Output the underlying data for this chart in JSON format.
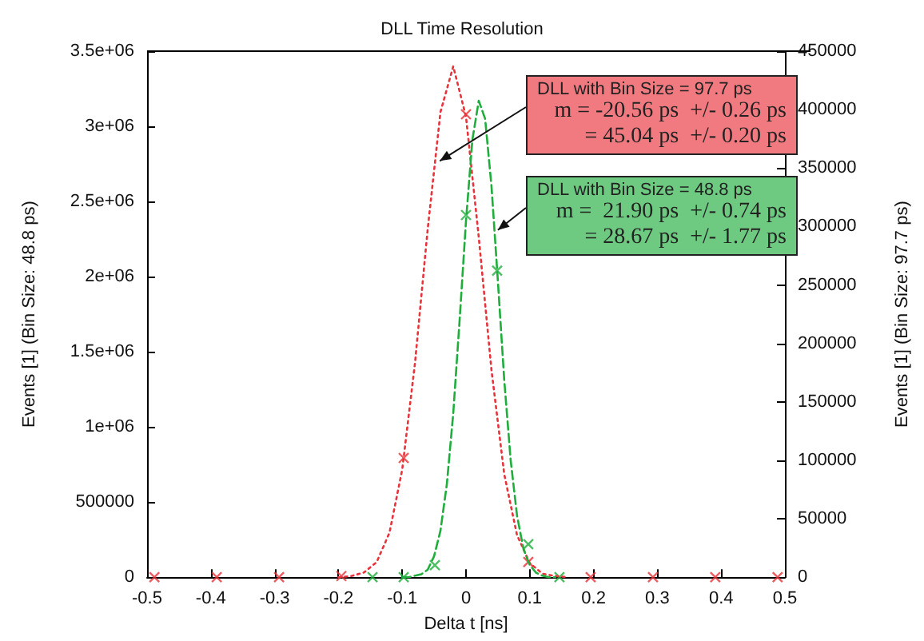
{
  "chart_data": {
    "type": "line",
    "title": "DLL Time Resolution",
    "xlabel": "Delta t [ns]",
    "ylabel": "Events [1] (Bin Size: 48.8 ps)",
    "y2label": "Events [1] (Bin Size: 97.7 ps)",
    "xlim": [
      -0.5,
      0.5
    ],
    "xticks": [
      -0.5,
      -0.4,
      -0.3,
      -0.2,
      -0.1,
      0,
      0.1,
      0.2,
      0.3,
      0.4,
      0.5
    ],
    "ylim": [
      0,
      3500000
    ],
    "yticks": [
      0,
      500000,
      {
        "value": 1000000,
        "label": "1e+06"
      },
      {
        "value": 1500000,
        "label": "1.5e+06"
      },
      {
        "value": 2000000,
        "label": "2e+06"
      },
      {
        "value": 2500000,
        "label": "2.5e+06"
      },
      {
        "value": 3000000,
        "label": "3e+06"
      },
      {
        "value": 3500000,
        "label": "3.5e+06"
      }
    ],
    "y2lim": [
      0,
      450000
    ],
    "y2ticks": [
      0,
      50000,
      100000,
      150000,
      200000,
      250000,
      300000,
      350000,
      400000,
      450000
    ],
    "grid": false,
    "series": [
      {
        "axis": "y2",
        "color": "#e8333a",
        "marker": "none",
        "line_style": "dotted",
        "x": [
          -0.2,
          -0.18,
          -0.16,
          -0.14,
          -0.12,
          -0.1,
          -0.08,
          -0.06,
          -0.04,
          -0.02,
          0,
          0.02,
          0.04,
          0.06,
          0.08,
          0.1,
          0.12,
          0.14,
          0.16
        ],
        "values": [
          0,
          1000,
          4000,
          13000,
          38000,
          92000,
          183000,
          298000,
          398000,
          437000,
          394000,
          291000,
          177000,
          88000,
          36000,
          12000,
          3000,
          1000,
          0
        ]
      },
      {
        "color": "#1fae3c",
        "marker": "none",
        "line_style": "dashed",
        "x": [
          -0.1,
          -0.09,
          -0.08,
          -0.07,
          -0.06,
          -0.05,
          -0.04,
          -0.03,
          -0.02,
          -0.01,
          0,
          0.01,
          0.02,
          0.03,
          0.04,
          0.05,
          0.06,
          0.07,
          0.08,
          0.09,
          0.1,
          0.11,
          0.12,
          0.13,
          0.14
        ],
        "values": [
          0,
          0,
          10000,
          20000,
          50000,
          140000,
          310000,
          620000,
          1090000,
          1710000,
          2370000,
          2910000,
          3170000,
          3050000,
          2600000,
          1970000,
          1310000,
          780000,
          410000,
          190000,
          80000,
          30000,
          10000,
          0,
          0
        ]
      },
      {
        "type": "scatter",
        "axis": "y2",
        "color": "#e8333a",
        "marker": "cross",
        "x": [
          -0.4885,
          -0.3908,
          -0.2931,
          -0.1954,
          -0.0977,
          0,
          0.0977,
          0.1954,
          0.2931,
          0.3908,
          0.4885
        ],
        "values": [
          0,
          0,
          0,
          1000,
          102000,
          396000,
          13000,
          0,
          0,
          0,
          0
        ]
      },
      {
        "type": "scatter",
        "color": "#1fae3c",
        "marker": "cross",
        "x": [
          -0.1465,
          -0.0977,
          -0.0488,
          0,
          0.0488,
          0.0977,
          0.1465
        ],
        "values": [
          0,
          0,
          80000,
          2410000,
          2040000,
          220000,
          0
        ]
      }
    ],
    "annotations": [
      {
        "text": "DLL with Bin Size = 97.7 ps\nm = -20.56 ps  +/- 0.26 ps\n= 45.04 ps  +/- 0.20 ps",
        "x": -0.041,
        "y": 2770000
      },
      {
        "text": "DLL with Bin Size = 48.8 ps\nm =  21.90 ps  +/- 0.74 ps\n= 28.67 ps  +/- 1.77 ps",
        "x": 0.05,
        "y": 2310000
      }
    ]
  }
}
